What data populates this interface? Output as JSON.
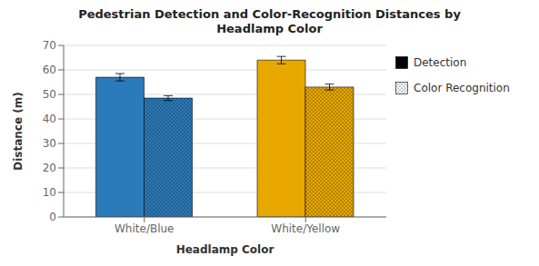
{
  "chart_data": {
    "type": "bar",
    "title": "Pedestrian Detection and Color-Recognition Distances by\nHeadlamp Color",
    "xlabel": "Headlamp Color",
    "ylabel": "Distance (m)",
    "categories": [
      "White/Blue",
      "White/Yellow"
    ],
    "series": [
      {
        "name": "Detection",
        "color": "#000000",
        "colors": [
          "#2b7bba",
          "#e8a800"
        ],
        "values": [
          57.0,
          64.0
        ],
        "errors": [
          1.5,
          1.5
        ]
      },
      {
        "name": "Color Recognition",
        "color": "#ffffff",
        "colors": [
          "#2b7bba",
          "#e8a800"
        ],
        "values": [
          48.5,
          53.0
        ],
        "errors": [
          1.0,
          1.2
        ]
      }
    ],
    "ylim": [
      0,
      70
    ],
    "yticks": [
      0,
      10,
      20,
      30,
      40,
      50,
      60,
      70
    ],
    "grid": true,
    "legend": "right"
  }
}
